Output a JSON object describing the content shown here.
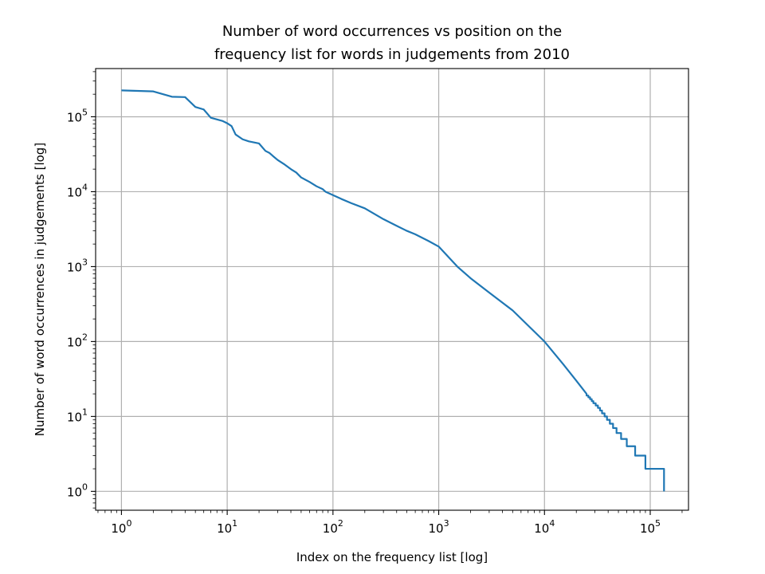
{
  "chart_data": {
    "type": "line",
    "title_lines": [
      "Number of word occurrences vs position on the",
      "frequency list for words in judgements from 2010"
    ],
    "xlabel": "Index on the frequency list [log]",
    "ylabel": "Number of word occurrences in judgements [log]",
    "xscale": "log",
    "yscale": "log",
    "xlim": [
      0.57,
      230000
    ],
    "ylim": [
      0.56,
      440000
    ],
    "grid": true,
    "x_ticks": [
      {
        "base": "10",
        "exp": "0",
        "value": 1
      },
      {
        "base": "10",
        "exp": "1",
        "value": 10
      },
      {
        "base": "10",
        "exp": "2",
        "value": 100
      },
      {
        "base": "10",
        "exp": "3",
        "value": 1000
      },
      {
        "base": "10",
        "exp": "4",
        "value": 10000
      },
      {
        "base": "10",
        "exp": "5",
        "value": 100000
      }
    ],
    "y_ticks": [
      {
        "base": "10",
        "exp": "0",
        "value": 1
      },
      {
        "base": "10",
        "exp": "1",
        "value": 10
      },
      {
        "base": "10",
        "exp": "2",
        "value": 100
      },
      {
        "base": "10",
        "exp": "3",
        "value": 1000
      },
      {
        "base": "10",
        "exp": "4",
        "value": 10000
      },
      {
        "base": "10",
        "exp": "5",
        "value": 100000
      }
    ],
    "series": [
      {
        "color": "#1f77b4",
        "step_tail": true,
        "x": [
          1,
          2,
          3,
          4,
          5,
          6,
          7,
          8,
          9,
          10,
          11,
          12,
          14,
          16,
          20,
          23,
          25,
          27,
          30,
          35,
          40,
          45,
          50,
          60,
          70,
          80,
          85,
          100,
          120,
          150,
          200,
          300,
          400,
          500,
          600,
          800,
          1000,
          1500,
          2000,
          3000,
          5000,
          10000,
          15000,
          20000,
          25000
        ],
        "y": [
          225000,
          218000,
          185000,
          183000,
          135000,
          125000,
          97000,
          92000,
          88000,
          82000,
          75000,
          58000,
          50000,
          47000,
          44000,
          35000,
          33000,
          30000,
          26500,
          23000,
          20000,
          18000,
          15500,
          13500,
          11800,
          10800,
          10000,
          9000,
          8000,
          7000,
          6000,
          4300,
          3500,
          3000,
          2700,
          2200,
          1850,
          1000,
          700,
          450,
          260,
          100,
          50,
          30,
          20
        ],
        "step_levels": [
          19,
          18,
          17,
          16,
          15,
          14,
          13,
          12,
          11,
          10,
          9,
          8,
          7,
          6,
          5,
          4,
          3,
          2,
          1
        ],
        "step_transitions": [
          26000,
          27000,
          28000,
          29000,
          30500,
          32000,
          33500,
          35000,
          37000,
          39000,
          41500,
          44500,
          48000,
          53000,
          60000,
          72000,
          90000,
          135000
        ]
      }
    ]
  }
}
